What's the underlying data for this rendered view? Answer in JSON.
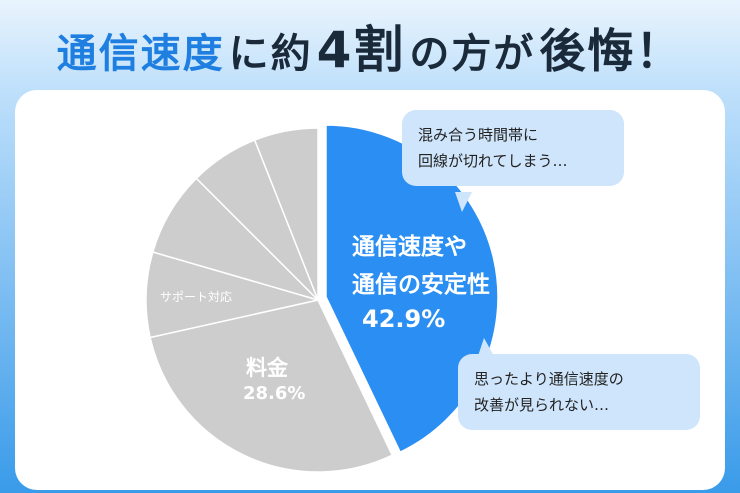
{
  "chart_data": {
    "type": "pie",
    "title_parts": [
      "通信速度",
      "に約",
      "4割",
      "の方が",
      "後悔！"
    ],
    "categories": [
      "通信速度や\n通信の安定性",
      "料金",
      "サポート対応",
      null,
      null,
      null
    ],
    "values": [
      42.9,
      28.6,
      8,
      8,
      6.5,
      6
    ],
    "value_labels": [
      "42.9%",
      "28.6%",
      null,
      null,
      null,
      null
    ],
    "colors": [
      "#2b8ef2",
      "#cdcdcd",
      "#cdcdcd",
      "#cdcdcd",
      "#cdcdcd",
      "#cdcdcd"
    ],
    "annotations": [
      "混み合う時間帯に\n回線が切れてしまう…",
      "思ったより通信速度の\n改善が見られない…"
    ]
  }
}
